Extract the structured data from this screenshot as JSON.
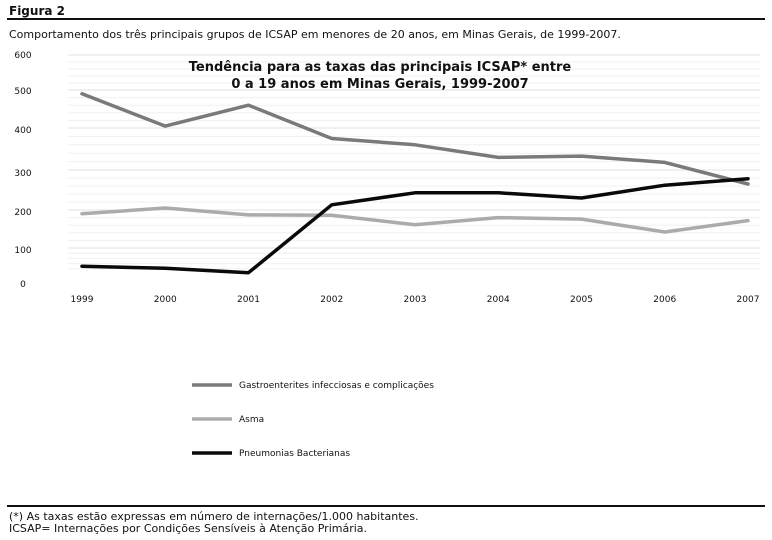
{
  "figure_label": "Figura 2",
  "caption": "Comportamento dos três principais grupos de ICSAP em menores de 20 anos, em Minas Gerais, de 1999-2007.",
  "footnotes": [
    "(*) As taxas estão expressas em número de internações/1.000 habitantes.",
    "ICSAP= Internações por Condições Sensíveis à Atenção Primária."
  ],
  "chart_data": {
    "type": "line",
    "title_lines": [
      "Tendência para as taxas das principais ICSAP* entre",
      "0 a 19 anos em Minas Gerais, 1999-2007"
    ],
    "categories": [
      "1999",
      "2000",
      "2001",
      "2002",
      "2003",
      "2004",
      "2005",
      "2006",
      "2007"
    ],
    "y_ticks": [
      0,
      100,
      200,
      300,
      400,
      500,
      600
    ],
    "ylim": [
      0,
      600
    ],
    "grid": true,
    "legend_position": "bottom-left",
    "series": [
      {
        "name": "Gastroenterites infecciosas e complicações",
        "color": "#7a7a7a",
        "values": [
          490,
          405,
          460,
          375,
          360,
          330,
          333,
          318,
          265
        ]
      },
      {
        "name": "Asma",
        "color": "#ababab",
        "values": [
          190,
          205,
          187,
          186,
          161,
          180,
          176,
          142,
          172
        ]
      },
      {
        "name": "Pneumonias Bacterianas",
        "color": "#0a0a0a",
        "values": [
          30,
          22,
          5,
          213,
          243,
          243,
          230,
          262,
          278
        ]
      }
    ]
  }
}
